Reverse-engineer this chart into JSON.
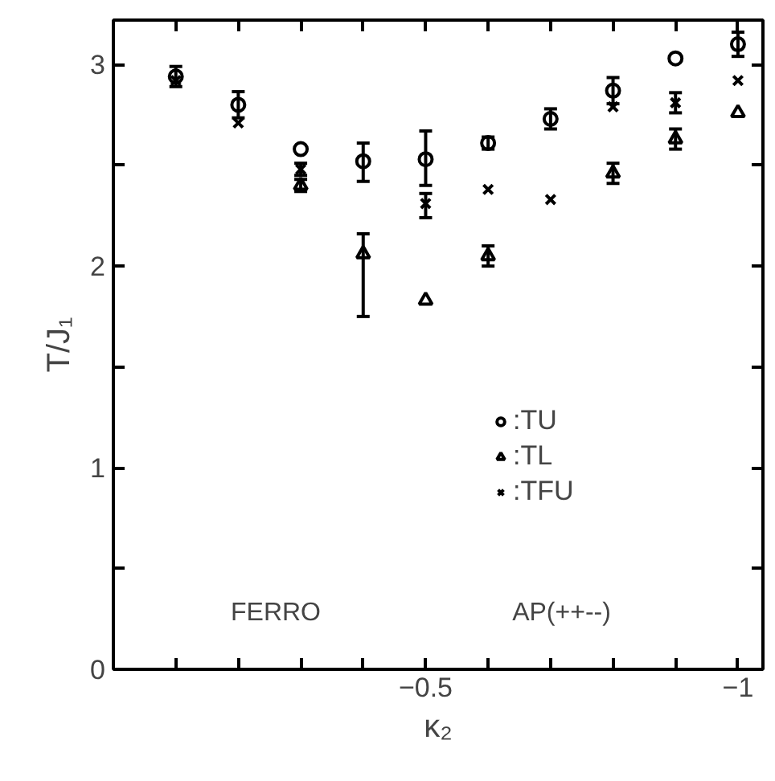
{
  "chart_data": {
    "type": "scatter",
    "xlabel": "κ₂",
    "ylabel": "T/J₁",
    "x": [
      -0.1,
      -0.2,
      -0.3,
      -0.4,
      -0.5,
      -0.6,
      -0.7,
      -0.8,
      -0.9,
      -1.0
    ],
    "series": [
      {
        "name": ":TU",
        "color": "#000000",
        "marker": "circle",
        "values": [
          2.94,
          2.8,
          2.58,
          2.52,
          2.53,
          2.61,
          2.73,
          2.87,
          3.03,
          3.1
        ],
        "errors": [
          0.05,
          0.065,
          null,
          [
            2.42,
            2.61
          ],
          [
            2.4,
            2.67
          ],
          0.03,
          0.05,
          0.065,
          null,
          0.06
        ]
      },
      {
        "name": ":TL",
        "color": "#000000",
        "marker": "triangle",
        "values": [
          null,
          null,
          2.4,
          2.06,
          1.83,
          2.05,
          null,
          2.46,
          2.63,
          2.76
        ],
        "errors": [
          null,
          null,
          0.03,
          [
            1.75,
            2.16
          ],
          null,
          0.05,
          null,
          0.05,
          0.05,
          null
        ]
      },
      {
        "name": ":TFU",
        "color": "#000000",
        "marker": "cross",
        "values": [
          2.92,
          2.71,
          2.48,
          null,
          2.31,
          2.38,
          2.33,
          2.79,
          2.81,
          2.92
        ],
        "errors": [
          null,
          null,
          0.03,
          null,
          [
            2.24,
            2.36
          ],
          null,
          null,
          null,
          0.05,
          null
        ]
      }
    ],
    "xlim": [
      0,
      -1.04
    ],
    "ylim": [
      0,
      3.22
    ],
    "xticks": [
      {
        "value": -0.1,
        "label": null
      },
      {
        "value": -0.2,
        "label": null
      },
      {
        "value": -0.3,
        "label": null
      },
      {
        "value": -0.4,
        "label": null
      },
      -0.5,
      {
        "value": -0.6,
        "label": null
      },
      {
        "value": -0.7,
        "label": null
      },
      {
        "value": -0.8,
        "label": null
      },
      {
        "value": -0.9,
        "label": null
      },
      {
        "value": -1,
        "label": "−1"
      }
    ],
    "yticks": [
      0,
      {
        "value": 0.5,
        "label": null
      },
      1,
      {
        "value": 1.5,
        "label": null
      },
      2,
      {
        "value": 2.5,
        "label": null
      },
      3
    ],
    "annotations": [
      "FERRO",
      "AP(++--)"
    ],
    "legend": "right",
    "grid": false
  }
}
